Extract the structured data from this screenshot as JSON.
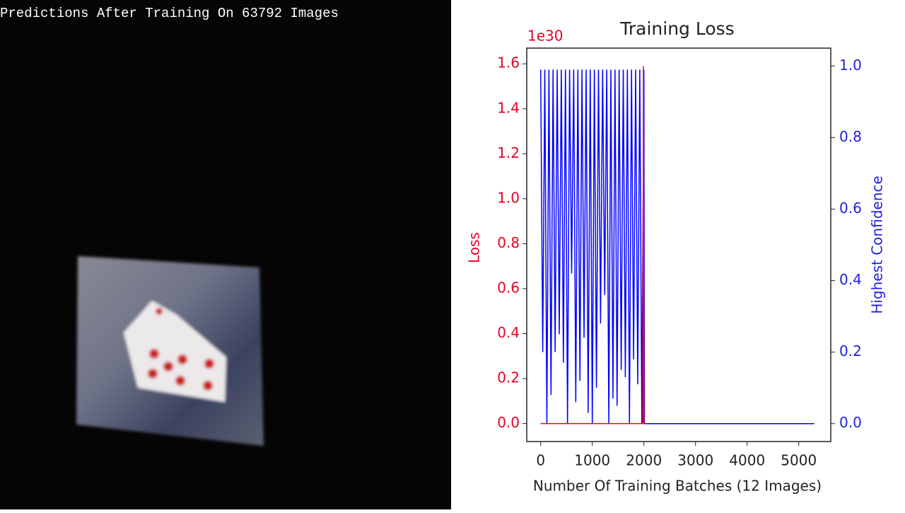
{
  "image_panel": {
    "caption": "Predictions After Training On 63792 Images"
  },
  "chart_data": {
    "type": "line",
    "title": "Training Loss",
    "offset_label": "1e30",
    "xlabel": "Number Of Training Batches (12 Images)",
    "ylabel": "Loss",
    "y2label": "Highest Confidence",
    "xlim": [
      -270,
      5620
    ],
    "xticks": [
      0,
      1000,
      2000,
      3000,
      4000,
      5000
    ],
    "ylim": [
      -0.08,
      1.67
    ],
    "yticks": [
      {
        "value": 0,
        "label": "0.0"
      },
      {
        "value": 0.2,
        "label": "0.2"
      },
      {
        "value": 0.4,
        "label": "0.4"
      },
      {
        "value": 0.6,
        "label": "0.6"
      },
      {
        "value": 0.8,
        "label": "0.8"
      },
      {
        "value": 1.0,
        "label": "1.0"
      },
      {
        "value": 1.2,
        "label": "1.2"
      },
      {
        "value": 1.4,
        "label": "1.4"
      },
      {
        "value": 1.6,
        "label": "1.6"
      }
    ],
    "y2lim": [
      -0.05,
      1.05
    ],
    "y2ticks": [
      {
        "value": 0,
        "label": "0.0"
      },
      {
        "value": 0.2,
        "label": "0.2"
      },
      {
        "value": 0.4,
        "label": "0.4"
      },
      {
        "value": 0.6,
        "label": "0.6"
      },
      {
        "value": 0.8,
        "label": "0.8"
      },
      {
        "value": 1.0,
        "label": "1.0"
      }
    ],
    "series": [
      {
        "color": "#0000ff",
        "axis": "y2",
        "x": [
          0,
          40,
          80,
          120,
          160,
          200,
          240,
          280,
          320,
          360,
          400,
          440,
          480,
          520,
          560,
          600,
          640,
          680,
          720,
          760,
          800,
          840,
          880,
          920,
          960,
          1000,
          1040,
          1080,
          1120,
          1160,
          1200,
          1240,
          1280,
          1320,
          1360,
          1400,
          1440,
          1480,
          1520,
          1560,
          1600,
          1640,
          1680,
          1720,
          1760,
          1800,
          1840,
          1880,
          1920,
          1960,
          2000,
          2010,
          5300
        ],
        "values": [
          0.99,
          0.2,
          0.99,
          0,
          0.99,
          0.08,
          0.99,
          0.2,
          0.99,
          0.25,
          0.99,
          0.17,
          0.99,
          0,
          0.99,
          0.42,
          0.99,
          0.06,
          0.99,
          0.12,
          0.99,
          0.24,
          0.99,
          0.03,
          0.99,
          0,
          0.99,
          0.1,
          0.99,
          0.28,
          0.99,
          0.36,
          0.99,
          0,
          0.99,
          0.07,
          0.99,
          0.05,
          0.99,
          0.15,
          0.99,
          0.13,
          0.99,
          0,
          0.99,
          0.18,
          0.99,
          0.11,
          0.99,
          0,
          0.99,
          0,
          0
        ]
      },
      {
        "color": "#ff0000",
        "x": [
          0,
          1000,
          1980,
          1990,
          2000
        ],
        "values": [
          0,
          0,
          0,
          1.59,
          0
        ]
      }
    ]
  }
}
